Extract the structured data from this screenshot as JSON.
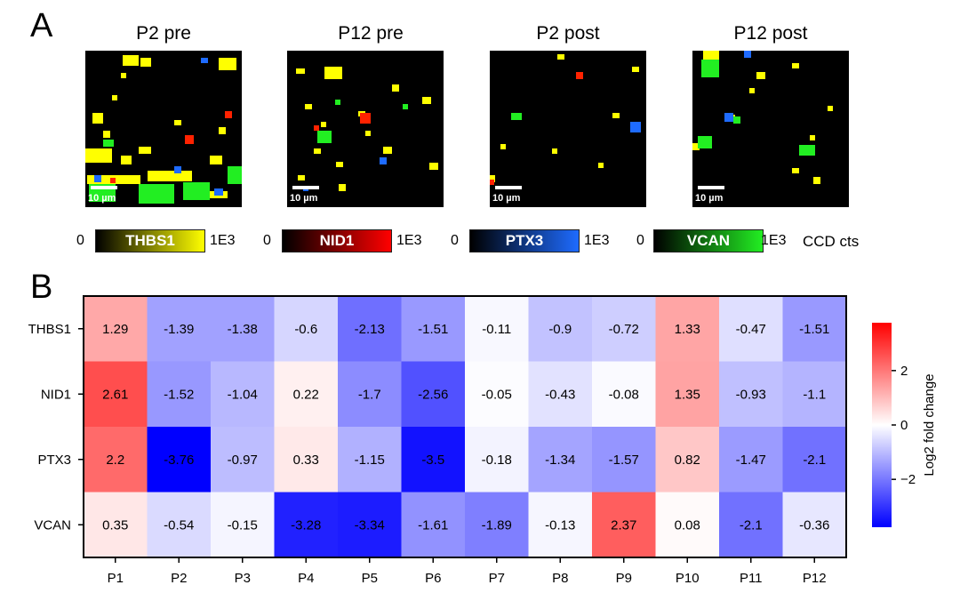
{
  "panel_a": {
    "letter": "A",
    "images": [
      {
        "title": "P2 pre",
        "scale_label": "10 µm"
      },
      {
        "title": "P12 pre",
        "scale_label": "10 µm"
      },
      {
        "title": "P2 post",
        "scale_label": "10 µm"
      },
      {
        "title": "P12 post",
        "scale_label": "10 µm"
      }
    ],
    "colorbars": [
      {
        "min": "0",
        "name": "THBS1",
        "max": "1E3",
        "color": "#ffff00"
      },
      {
        "min": "0",
        "name": "NID1",
        "max": "1E3",
        "color": "#ff0000"
      },
      {
        "min": "0",
        "name": "PTX3",
        "max": "1E3",
        "color": "#1e6bff"
      },
      {
        "min": "0",
        "name": "VCAN",
        "max": "1E3",
        "color": "#22ee22"
      }
    ],
    "units": "CCD cts"
  },
  "panel_b": {
    "letter": "B"
  },
  "chart_data": {
    "type": "heatmap",
    "x_categories": [
      "P1",
      "P2",
      "P3",
      "P4",
      "P5",
      "P6",
      "P7",
      "P8",
      "P9",
      "P10",
      "P11",
      "P12"
    ],
    "y_categories": [
      "THBS1",
      "NID1",
      "PTX3",
      "VCAN"
    ],
    "values": [
      [
        1.29,
        -1.39,
        -1.38,
        -0.6,
        -2.13,
        -1.51,
        -0.11,
        -0.9,
        -0.72,
        1.33,
        -0.47,
        -1.51
      ],
      [
        2.61,
        -1.52,
        -1.04,
        0.22,
        -1.7,
        -2.56,
        -0.05,
        -0.43,
        -0.08,
        1.35,
        -0.93,
        -1.1
      ],
      [
        2.2,
        -3.76,
        -0.97,
        0.33,
        -1.15,
        -3.5,
        -0.18,
        -1.34,
        -1.57,
        0.82,
        -1.47,
        -2.1
      ],
      [
        0.35,
        -0.54,
        -0.15,
        -3.28,
        -3.34,
        -1.61,
        -1.89,
        -0.13,
        2.37,
        0.08,
        -2.1,
        -0.36
      ]
    ],
    "colorbar": {
      "label": "Log2 fold change",
      "vmin": -3.76,
      "vmax": 3.76,
      "ticks": [
        2,
        0,
        -2
      ],
      "tick_labels": [
        "2",
        "0",
        "−2"
      ],
      "colormap": "bwr"
    }
  }
}
